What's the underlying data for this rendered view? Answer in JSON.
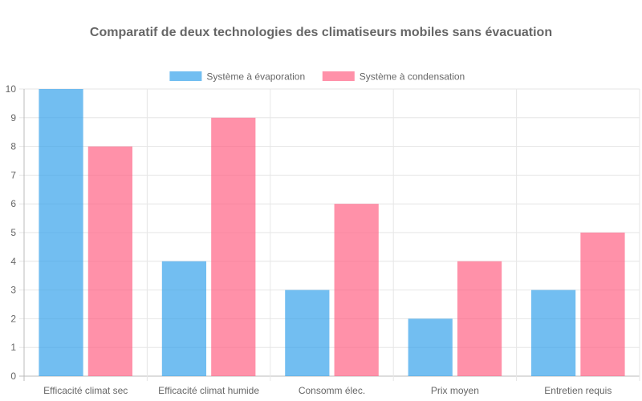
{
  "chart_data": {
    "type": "bar",
    "title": "Comparatif de deux technologies des climatiseurs mobiles sans évacuation",
    "categories": [
      "Efficacité climat sec",
      "Efficacité climat humide",
      "Consomm élec.",
      "Prix moyen",
      "Entretien requis"
    ],
    "series": [
      {
        "name": "Système à évaporation",
        "values": [
          10,
          4,
          3,
          2,
          3
        ],
        "color": "#36a2eb",
        "fill": "rgba(54,162,235,0.7)"
      },
      {
        "name": "Système à condensation",
        "values": [
          8,
          9,
          6,
          4,
          5
        ],
        "color": "#ff6384",
        "fill": "rgba(255,99,132,0.7)"
      }
    ],
    "xlabel": "",
    "ylabel": "",
    "ylim": [
      0,
      10
    ],
    "yticks": [
      "0",
      "1",
      "2",
      "3",
      "4",
      "5",
      "6",
      "7",
      "8",
      "9",
      "10"
    ],
    "grid": true,
    "legend": "top-center"
  }
}
